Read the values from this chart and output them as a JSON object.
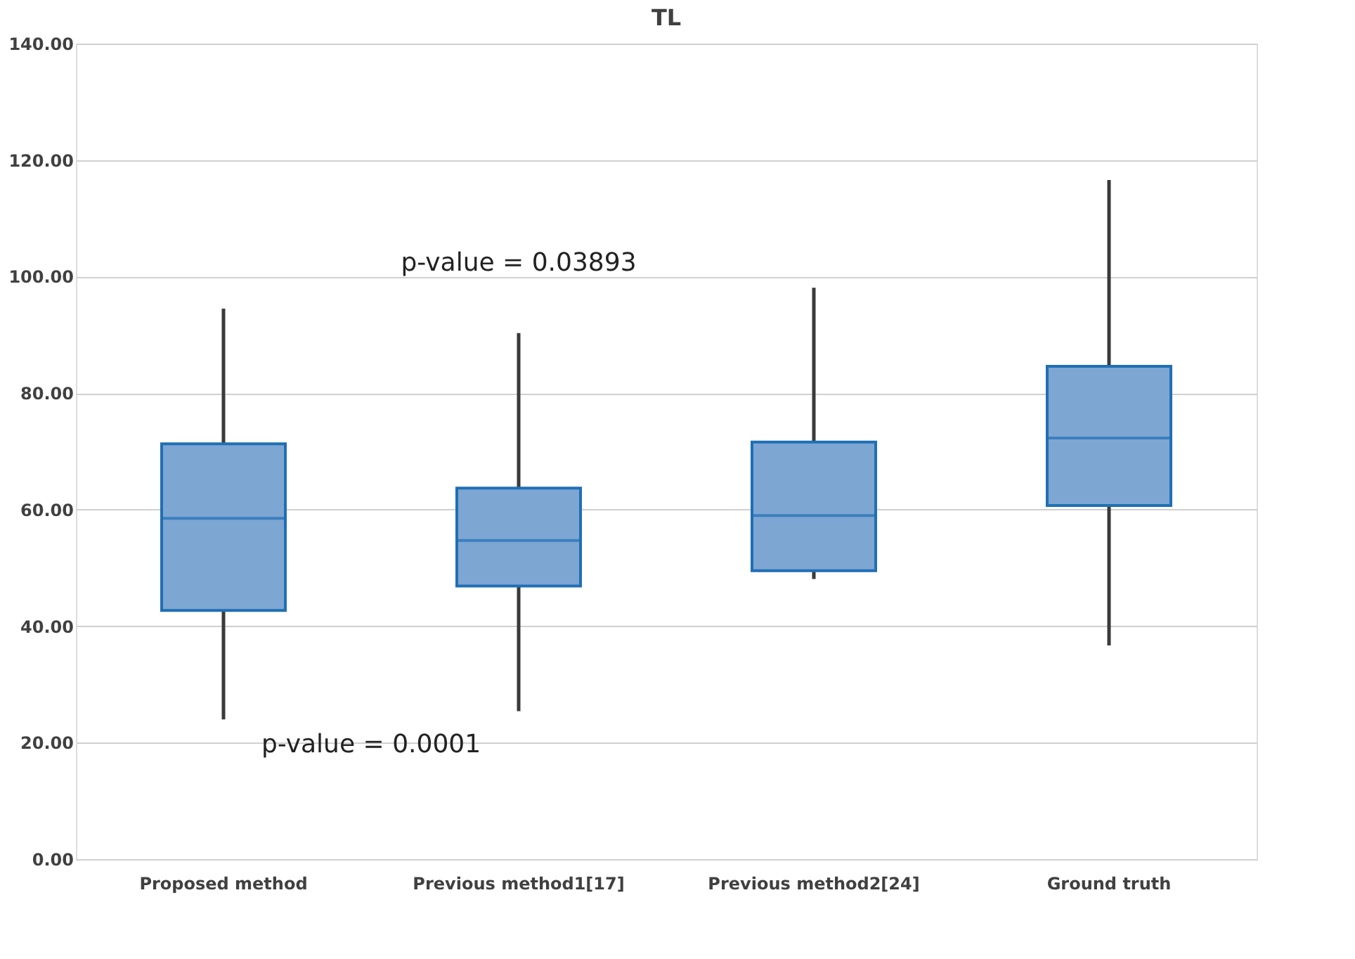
{
  "chart_data": {
    "type": "box",
    "title": "TL",
    "categories": [
      "Proposed method",
      "Previous method1[17]",
      "Previous method2[24]",
      "Ground truth"
    ],
    "series": [
      {
        "color": "#7ea6d2",
        "boxes": [
          {
            "low": 24,
            "q1": 42.7,
            "median": 58.5,
            "q3": 71.3,
            "high": 94.5
          },
          {
            "low": 25.4,
            "q1": 46.9,
            "median": 54.7,
            "q3": 63.7,
            "high": 90.3
          },
          {
            "low": 48.1,
            "q1": 49.5,
            "median": 59.0,
            "q3": 71.6,
            "high": 98.1
          },
          {
            "low": 36.7,
            "q1": 60.7,
            "median": 72.3,
            "q3": 84.6,
            "high": 116.6
          }
        ]
      }
    ],
    "ylim": [
      0,
      140
    ],
    "yticks": [
      {
        "value": 0,
        "label": "0.00"
      },
      {
        "value": 20,
        "label": "20.00"
      },
      {
        "value": 40,
        "label": "40.00"
      },
      {
        "value": 60,
        "label": "60.00"
      },
      {
        "value": 80,
        "label": "80.00"
      },
      {
        "value": 100,
        "label": "100.00"
      },
      {
        "value": 120,
        "label": "120.00"
      },
      {
        "value": 140,
        "label": "140.00"
      }
    ],
    "grid": "y",
    "annotations": [
      "p-value = 0.03893",
      "p-value = 0.0001"
    ]
  }
}
